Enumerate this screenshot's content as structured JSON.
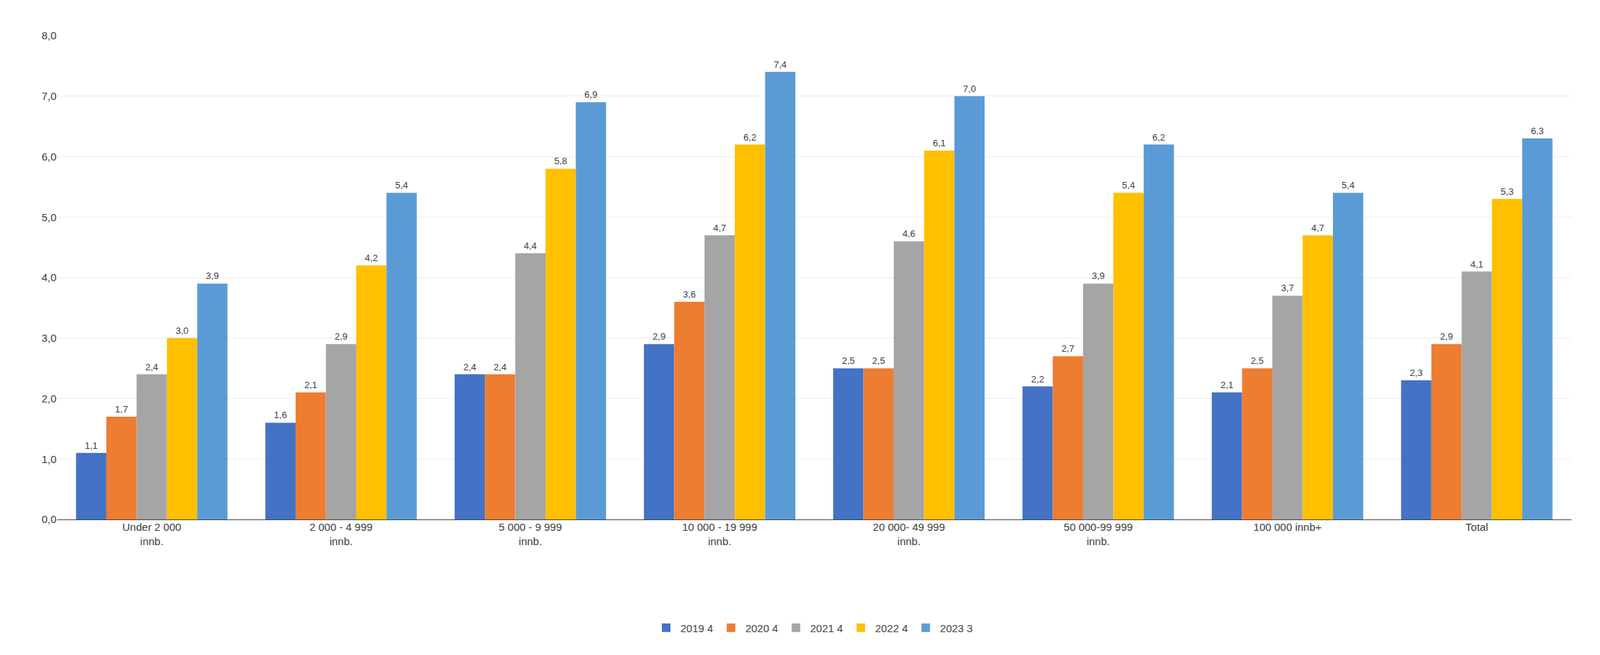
{
  "chart_data": {
    "type": "bar",
    "categories": [
      "Under 2 000\ninnb.",
      "2 000 - 4 999\ninnb.",
      "5 000 - 9 999\ninnb.",
      "10 000 - 19 999\ninnb.",
      "20 000- 49 999\ninnb.",
      "50 000-99 999\ninnb.",
      "100 000 innb+",
      "Total"
    ],
    "series": [
      {
        "name": "2019 4",
        "color": "#4472C4",
        "values": [
          1.1,
          1.6,
          2.4,
          2.9,
          2.5,
          2.2,
          2.1,
          2.3
        ],
        "value_labels": [
          "1,1",
          "1,6",
          "2,4",
          "2,9",
          "2,5",
          "2,2",
          "2,1",
          "2,3"
        ]
      },
      {
        "name": "2020 4",
        "color": "#ED7D31",
        "values": [
          1.7,
          2.1,
          2.4,
          3.6,
          2.5,
          2.7,
          2.5,
          2.9
        ],
        "value_labels": [
          "1,7",
          "2,1",
          "2,4",
          "3,6",
          "2,5",
          "2,7",
          "2,5",
          "2,9"
        ]
      },
      {
        "name": "2021 4",
        "color": "#A5A5A5",
        "values": [
          2.4,
          2.9,
          4.4,
          4.7,
          4.6,
          3.9,
          3.7,
          4.1
        ],
        "value_labels": [
          "2,4",
          "2,9",
          "4,4",
          "4,7",
          "4,6",
          "3,9",
          "3,7",
          "4,1"
        ]
      },
      {
        "name": "2022 4",
        "color": "#FFC000",
        "values": [
          3.0,
          4.2,
          5.8,
          6.2,
          6.1,
          5.4,
          4.7,
          5.3
        ],
        "value_labels": [
          "3,0",
          "4,2",
          "5,8",
          "6,2",
          "6,1",
          "5,4",
          "4,7",
          "5,3"
        ]
      },
      {
        "name": "2023 3",
        "color": "#5B9BD5",
        "values": [
          3.9,
          5.4,
          6.9,
          7.4,
          7.0,
          6.2,
          5.4,
          6.3
        ],
        "value_labels": [
          "3,9",
          "5,4",
          "6,9",
          "7,4",
          "7,0",
          "6,2",
          "5,4",
          "6,3"
        ]
      }
    ],
    "ylim": [
      0,
      8.0
    ],
    "yticks": [
      {
        "value": 0.0,
        "label": "0,0"
      },
      {
        "value": 1.0,
        "label": "1,0"
      },
      {
        "value": 2.0,
        "label": "2,0"
      },
      {
        "value": 3.0,
        "label": "3,0"
      },
      {
        "value": 4.0,
        "label": "4,0"
      },
      {
        "value": 5.0,
        "label": "5,0"
      },
      {
        "value": 6.0,
        "label": "6,0"
      },
      {
        "value": 7.0,
        "label": "7,0"
      },
      {
        "value": 8.0,
        "label": "8,0"
      }
    ],
    "grid": true,
    "legend": "bottom",
    "data_labels": true
  }
}
